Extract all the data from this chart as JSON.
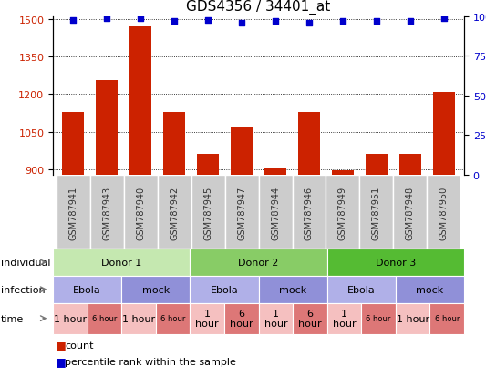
{
  "title": "GDS4356 / 34401_at",
  "samples": [
    "GSM787941",
    "GSM787943",
    "GSM787940",
    "GSM787942",
    "GSM787945",
    "GSM787947",
    "GSM787944",
    "GSM787946",
    "GSM787949",
    "GSM787951",
    "GSM787948",
    "GSM787950"
  ],
  "bar_values": [
    1130,
    1255,
    1470,
    1130,
    960,
    1070,
    905,
    1130,
    895,
    960,
    960,
    1210
  ],
  "percentile_values": [
    98,
    99,
    99,
    97,
    98,
    96,
    97,
    96,
    97,
    97,
    97,
    99
  ],
  "bar_color": "#cc2200",
  "dot_color": "#0000cc",
  "ylim_left": [
    880,
    1510
  ],
  "ylim_right": [
    0,
    100
  ],
  "yticks_left": [
    900,
    1050,
    1200,
    1350,
    1500
  ],
  "yticks_right": [
    0,
    25,
    50,
    75,
    100
  ],
  "ylabel_right_ticks": [
    "0",
    "25",
    "50",
    "75",
    "100%"
  ],
  "grid_y": [
    900,
    1050,
    1200,
    1350,
    1500
  ],
  "donor_groups": [
    {
      "label": "Donor 1",
      "start": 0,
      "end": 4,
      "color": "#c5e8b0"
    },
    {
      "label": "Donor 2",
      "start": 4,
      "end": 8,
      "color": "#88cc66"
    },
    {
      "label": "Donor 3",
      "start": 8,
      "end": 12,
      "color": "#55bb33"
    }
  ],
  "infection_groups": [
    {
      "label": "Ebola",
      "start": 0,
      "end": 2,
      "color": "#b0b0e8"
    },
    {
      "label": "mock",
      "start": 2,
      "end": 4,
      "color": "#9090d8"
    },
    {
      "label": "Ebola",
      "start": 4,
      "end": 6,
      "color": "#b0b0e8"
    },
    {
      "label": "mock",
      "start": 6,
      "end": 8,
      "color": "#9090d8"
    },
    {
      "label": "Ebola",
      "start": 8,
      "end": 10,
      "color": "#b0b0e8"
    },
    {
      "label": "mock",
      "start": 10,
      "end": 12,
      "color": "#9090d8"
    }
  ],
  "time_groups": [
    {
      "label": "1 hour",
      "start": 0,
      "end": 1,
      "color": "#f5c0c0",
      "small": false
    },
    {
      "label": "6 hour",
      "start": 1,
      "end": 2,
      "color": "#dd7777",
      "small": true
    },
    {
      "label": "1 hour",
      "start": 2,
      "end": 3,
      "color": "#f5c0c0",
      "small": false
    },
    {
      "label": "6 hour",
      "start": 3,
      "end": 4,
      "color": "#dd7777",
      "small": true
    },
    {
      "label": "1\nhour",
      "start": 4,
      "end": 5,
      "color": "#f5c0c0",
      "small": false
    },
    {
      "label": "6\nhour",
      "start": 5,
      "end": 6,
      "color": "#dd7777",
      "small": false
    },
    {
      "label": "1\nhour",
      "start": 6,
      "end": 7,
      "color": "#f5c0c0",
      "small": false
    },
    {
      "label": "6\nhour",
      "start": 7,
      "end": 8,
      "color": "#dd7777",
      "small": false
    },
    {
      "label": "1\nhour",
      "start": 8,
      "end": 9,
      "color": "#f5c0c0",
      "small": false
    },
    {
      "label": "6 hour",
      "start": 9,
      "end": 10,
      "color": "#dd7777",
      "small": true
    },
    {
      "label": "1 hour",
      "start": 10,
      "end": 11,
      "color": "#f5c0c0",
      "small": false
    },
    {
      "label": "6 hour",
      "start": 11,
      "end": 12,
      "color": "#dd7777",
      "small": true
    }
  ],
  "row_labels": [
    "individual",
    "infection",
    "time"
  ],
  "legend_items": [
    {
      "color": "#cc2200",
      "label": "count"
    },
    {
      "color": "#0000cc",
      "label": "percentile rank within the sample"
    }
  ],
  "sample_bg_color": "#cccccc",
  "chart_bg_color": "#ffffff",
  "background_color": "#ffffff"
}
